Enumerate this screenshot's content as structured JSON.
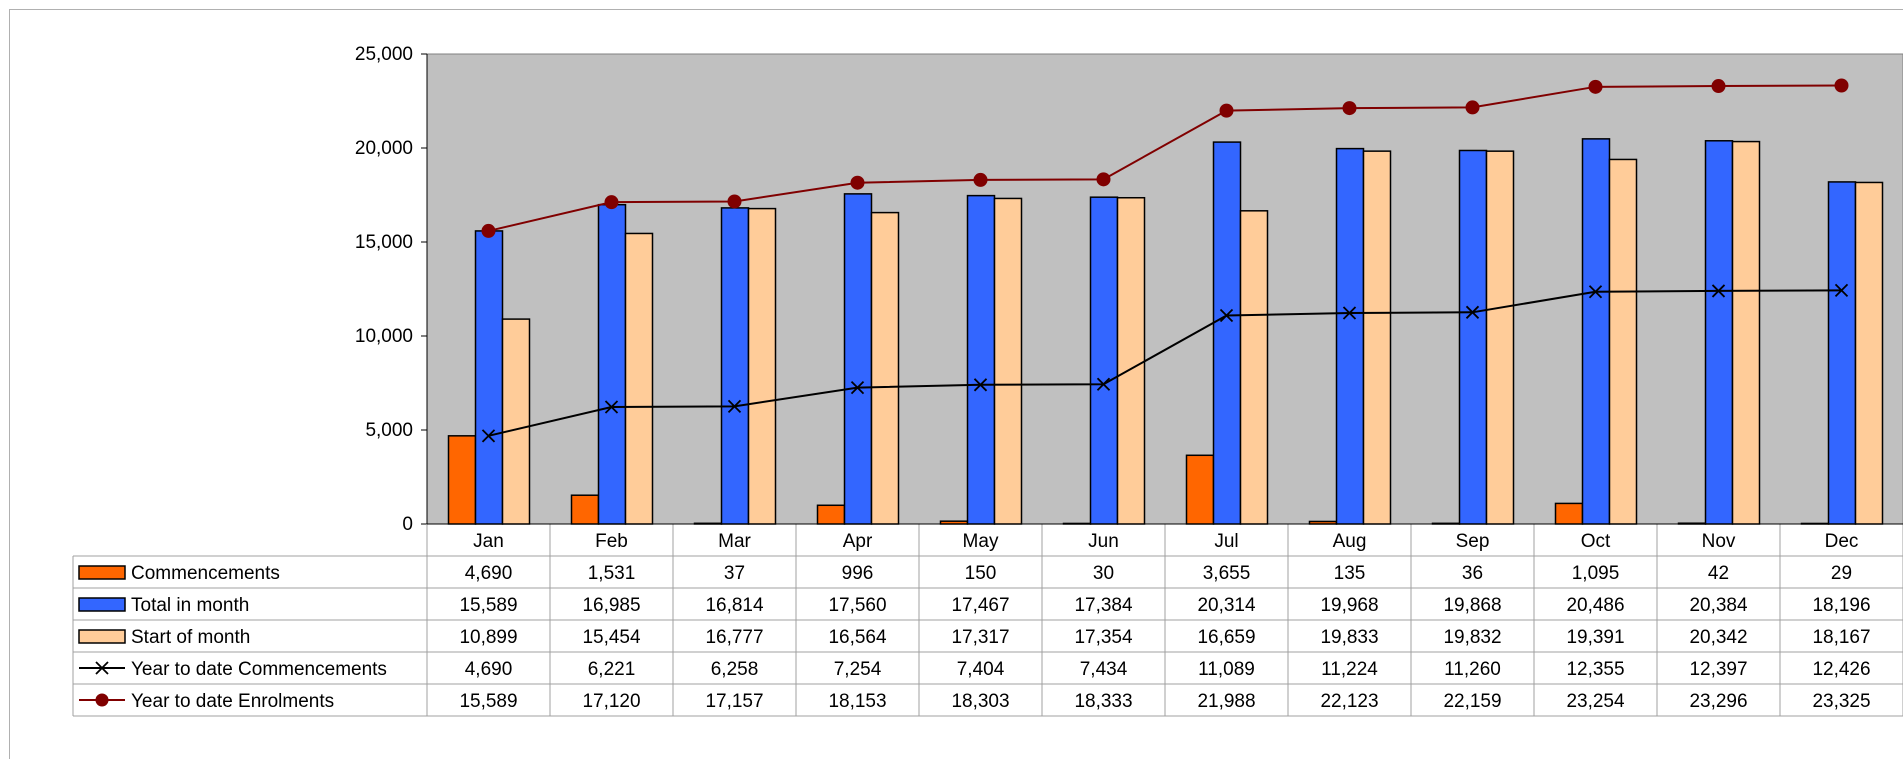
{
  "chart_data": {
    "type": "bar",
    "categories": [
      "Jan",
      "Feb",
      "Mar",
      "Apr",
      "May",
      "Jun",
      "Jul",
      "Aug",
      "Sep",
      "Oct",
      "Nov",
      "Dec"
    ],
    "ylim": [
      0,
      25000
    ],
    "yticks": [
      0,
      5000,
      10000,
      15000,
      20000,
      25000
    ],
    "ytick_labels": [
      "0",
      "5,000",
      "10,000",
      "15,000",
      "20,000",
      "25,000"
    ],
    "grid": false,
    "plot_background": "#c0c0c0",
    "legend": "data-table-left",
    "bar_series": [
      {
        "name": "Commencements",
        "color": "#ff6600",
        "values": [
          4690,
          1531,
          37,
          996,
          150,
          30,
          3655,
          135,
          36,
          1095,
          42,
          29
        ],
        "labels": [
          "4,690",
          "1,531",
          "37",
          "996",
          "150",
          "30",
          "3,655",
          "135",
          "36",
          "1,095",
          "42",
          "29"
        ]
      },
      {
        "name": "Total in month",
        "color": "#3366ff",
        "values": [
          15589,
          16985,
          16814,
          17560,
          17467,
          17384,
          20314,
          19968,
          19868,
          20486,
          20384,
          18196
        ],
        "labels": [
          "15,589",
          "16,985",
          "16,814",
          "17,560",
          "17,467",
          "17,384",
          "20,314",
          "19,968",
          "19,868",
          "20,486",
          "20,384",
          "18,196"
        ]
      },
      {
        "name": "Start of month",
        "color": "#ffcc99",
        "values": [
          10899,
          15454,
          16777,
          16564,
          17317,
          17354,
          16659,
          19833,
          19832,
          19391,
          20342,
          18167
        ],
        "labels": [
          "10,899",
          "15,454",
          "16,777",
          "16,564",
          "17,317",
          "17,354",
          "16,659",
          "19,833",
          "19,832",
          "19,391",
          "20,342",
          "18,167"
        ]
      }
    ],
    "line_series": [
      {
        "name": "Year to date Commencements",
        "color": "#000000",
        "marker": "x",
        "values": [
          4690,
          6221,
          6258,
          7254,
          7404,
          7434,
          11089,
          11224,
          11260,
          12355,
          12397,
          12426
        ],
        "labels": [
          "4,690",
          "6,221",
          "6,258",
          "7,254",
          "7,404",
          "7,434",
          "11,089",
          "11,224",
          "11,260",
          "12,355",
          "12,397",
          "12,426"
        ]
      },
      {
        "name": "Year to date Enrolments",
        "color": "#800000",
        "marker": "circle",
        "values": [
          15589,
          17120,
          17157,
          18153,
          18303,
          18333,
          21988,
          22123,
          22159,
          23254,
          23296,
          23325
        ],
        "labels": [
          "15,589",
          "17,120",
          "17,157",
          "18,153",
          "18,303",
          "18,333",
          "21,988",
          "22,123",
          "22,159",
          "23,254",
          "23,296",
          "23,325"
        ]
      }
    ]
  }
}
